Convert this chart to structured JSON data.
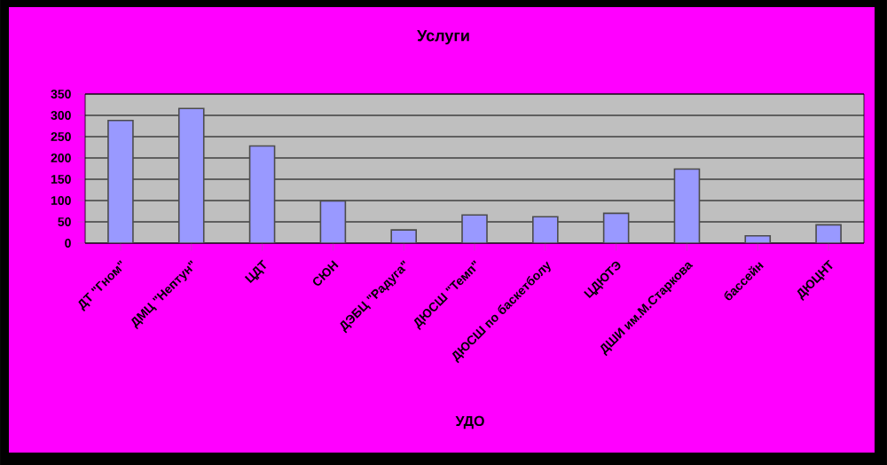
{
  "chart_data": {
    "type": "bar",
    "title": "Услуги",
    "xlabel": "УДО",
    "categories": [
      "ДТ \"Гном\"",
      "ДМЦ \"Нептун\"",
      "ЦДТ",
      "СЮН",
      "ДЭБЦ \"Радуга\"",
      "ДЮСШ \"Темп\"",
      "ДЮСШ по баскетболу",
      "ЦДЮТЭ",
      "ДШИ им.М.Старкова",
      "бассейн",
      "ДЮЦНТ"
    ],
    "values": [
      288,
      316,
      228,
      99,
      31,
      66,
      62,
      70,
      174,
      17,
      43
    ],
    "color": "#9999ff",
    "ylim": [
      0,
      350
    ],
    "yticks": [
      0,
      50,
      100,
      150,
      200,
      250,
      300,
      350
    ],
    "grid": "y"
  }
}
